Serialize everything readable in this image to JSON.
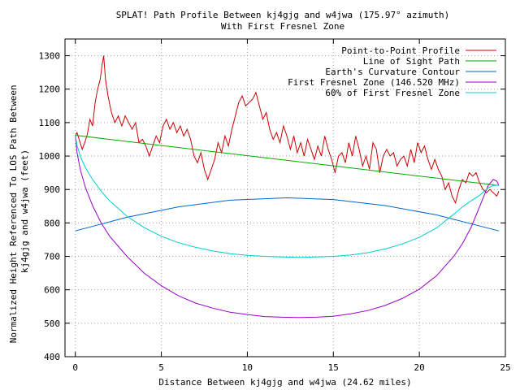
{
  "chart_data": {
    "type": "line",
    "title": "SPLAT! Path Profile Between kj4gjg and w4jwa (175.97° azimuth)",
    "subtitle": "With First Fresnel Zone",
    "xlabel": "Distance Between kj4gjg and w4jwa (24.62 miles)",
    "ylabel": "Normalized Height Referenced To LOS Path Between kj4gjg and w4jwa (feet)",
    "xlim": [
      -0.6,
      25
    ],
    "ylim": [
      400,
      1350
    ],
    "x_ticks": [
      0,
      5,
      10,
      15,
      20,
      25
    ],
    "y_ticks": [
      400,
      500,
      600,
      700,
      800,
      900,
      1000,
      1100,
      1200,
      1300
    ],
    "grid": true,
    "legend_position": "top-right",
    "series": [
      {
        "name": "Point-to-Point Profile",
        "color": "#cc0000",
        "x": [
          0,
          0.1,
          0.25,
          0.4,
          0.55,
          0.7,
          0.85,
          1.0,
          1.15,
          1.3,
          1.45,
          1.55,
          1.65,
          1.75,
          1.9,
          2.1,
          2.3,
          2.5,
          2.7,
          2.9,
          3.1,
          3.3,
          3.5,
          3.7,
          3.9,
          4.1,
          4.3,
          4.5,
          4.7,
          4.9,
          5.1,
          5.3,
          5.5,
          5.7,
          5.9,
          6.1,
          6.3,
          6.5,
          6.7,
          6.9,
          7.1,
          7.3,
          7.5,
          7.7,
          7.9,
          8.1,
          8.3,
          8.5,
          8.7,
          8.9,
          9.1,
          9.3,
          9.5,
          9.7,
          9.9,
          10.1,
          10.3,
          10.5,
          10.7,
          10.9,
          11.1,
          11.3,
          11.5,
          11.7,
          11.9,
          12.1,
          12.3,
          12.5,
          12.7,
          12.9,
          13.1,
          13.3,
          13.5,
          13.7,
          13.9,
          14.1,
          14.3,
          14.5,
          14.7,
          14.9,
          15.1,
          15.3,
          15.5,
          15.7,
          15.9,
          16.1,
          16.3,
          16.5,
          16.7,
          16.9,
          17.1,
          17.3,
          17.5,
          17.7,
          17.9,
          18.1,
          18.3,
          18.5,
          18.7,
          18.9,
          19.1,
          19.3,
          19.5,
          19.7,
          19.9,
          20.1,
          20.3,
          20.5,
          20.7,
          20.9,
          21.1,
          21.3,
          21.5,
          21.7,
          21.9,
          22.1,
          22.3,
          22.5,
          22.7,
          22.9,
          23.1,
          23.3,
          23.5,
          23.7,
          23.9,
          24.1,
          24.3,
          24.5,
          24.62
        ],
        "y": [
          1060,
          1070,
          1045,
          1020,
          1040,
          1065,
          1110,
          1090,
          1160,
          1200,
          1230,
          1270,
          1300,
          1230,
          1180,
          1130,
          1100,
          1120,
          1090,
          1120,
          1100,
          1080,
          1100,
          1040,
          1050,
          1030,
          1000,
          1030,
          1060,
          1040,
          1090,
          1110,
          1080,
          1100,
          1070,
          1090,
          1060,
          1080,
          1050,
          1000,
          980,
          1010,
          960,
          930,
          960,
          990,
          1040,
          1010,
          1060,
          1030,
          1080,
          1120,
          1160,
          1180,
          1150,
          1160,
          1170,
          1190,
          1150,
          1110,
          1130,
          1080,
          1050,
          1070,
          1040,
          1090,
          1060,
          1020,
          1060,
          1010,
          1040,
          1000,
          1050,
          1020,
          990,
          1030,
          1000,
          1060,
          1020,
          990,
          950,
          1000,
          1010,
          980,
          1040,
          1000,
          1060,
          1020,
          970,
          1000,
          960,
          1040,
          1020,
          950,
          1000,
          1020,
          1000,
          1010,
          970,
          990,
          1000,
          970,
          1020,
          980,
          1040,
          1010,
          1030,
          990,
          960,
          990,
          960,
          940,
          900,
          920,
          880,
          860,
          900,
          930,
          920,
          950,
          940,
          950,
          920,
          900,
          890,
          900,
          890,
          880,
          895
        ]
      },
      {
        "name": "Line of Sight Path",
        "color": "#00aa00",
        "x": [
          0,
          24.62
        ],
        "y": [
          1062,
          912
        ]
      },
      {
        "name": "Earth's Curvature Contour",
        "color": "#0066cc",
        "x": [
          0,
          3,
          6,
          9,
          12.31,
          15,
          18,
          21,
          24.62
        ],
        "y": [
          776,
          817,
          848,
          868,
          875,
          870,
          852,
          824,
          776
        ]
      },
      {
        "name": "First Fresnel Zone (146.520 MHz)",
        "color": "#9900cc",
        "x": [
          0,
          0.1,
          0.3,
          0.6,
          1,
          1.5,
          2,
          3,
          4,
          5,
          6,
          7,
          8,
          9,
          10,
          11,
          12,
          13,
          14,
          15,
          16,
          17,
          18,
          19,
          20,
          21,
          22,
          22.5,
          23,
          23.5,
          24,
          24.3,
          24.5,
          24.62
        ],
        "y": [
          1062,
          1010,
          957,
          904,
          852,
          800,
          760,
          700,
          650,
          612,
          582,
          560,
          545,
          533,
          526,
          520,
          518,
          517,
          518,
          521,
          528,
          538,
          553,
          574,
          602,
          642,
          700,
          738,
          786,
          848,
          912,
          930,
          925,
          912
        ]
      },
      {
        "name": "60% of First Fresnel Zone",
        "color": "#00cccc",
        "x": [
          0,
          0.1,
          0.3,
          0.6,
          1,
          1.5,
          2,
          3,
          4,
          5,
          6,
          7,
          8,
          9,
          10,
          11,
          12,
          13,
          14,
          15,
          16,
          17,
          18,
          19,
          20,
          21,
          22,
          22.5,
          23,
          23.5,
          24,
          24.3,
          24.5,
          24.62
        ],
        "y": [
          1062,
          1032,
          998,
          964,
          930,
          895,
          866,
          820,
          786,
          760,
          741,
          727,
          716,
          708,
          703,
          700,
          698,
          697,
          698,
          700,
          704,
          711,
          722,
          737,
          757,
          785,
          826,
          848,
          866,
          882,
          905,
          912,
          913,
          912
        ]
      }
    ]
  }
}
